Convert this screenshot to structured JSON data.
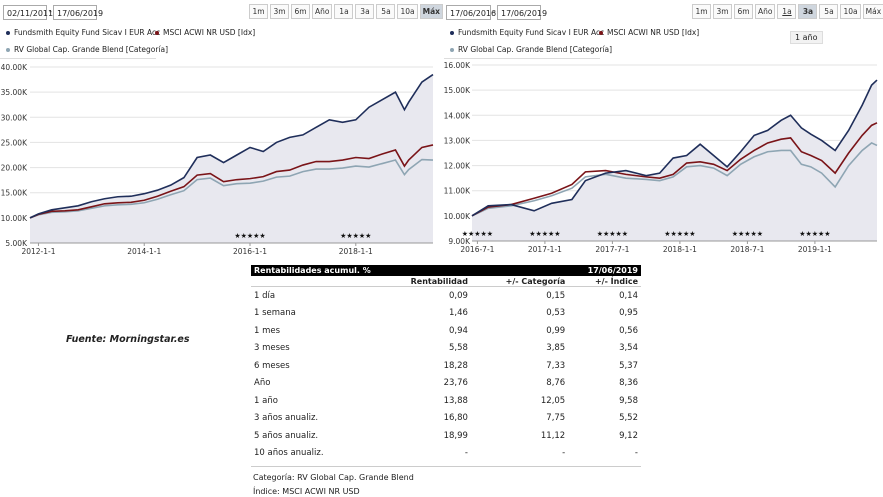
{
  "left_panel": {
    "date_from": "02/11/2011",
    "date_to": "17/06/2019",
    "date_dash": "-",
    "range_buttons": [
      "1m",
      "3m",
      "6m",
      "Año",
      "1a",
      "3a",
      "5a",
      "10a",
      "Máx"
    ],
    "active_range": "Máx"
  },
  "right_panel": {
    "date_from": "17/06/2016",
    "date_to": "17/06/2019",
    "date_dash": "-",
    "range_buttons": [
      "1m",
      "3m",
      "6m",
      "Año",
      "1a",
      "3a",
      "5a",
      "10a",
      "Máx"
    ],
    "active_range": "3a",
    "tooltip": "1 año"
  },
  "colors": {
    "fund": "#1f2e5a",
    "index": "#7a1418",
    "category": "#8ea5b3",
    "fill": "#e8e8ef"
  },
  "chart_data": [
    {
      "type": "line",
      "legend": [
        "Fundsmith Equity Fund Sicav I EUR Acc",
        "MSCI ACWI NR USD [Idx]",
        "RV Global Cap. Grande Blend [Categoría]"
      ],
      "y_ticks": [
        "40.00K",
        "35.00K",
        "30.00K",
        "25.00K",
        "20.00K",
        "15.00K",
        "10.00K",
        "5.00K"
      ],
      "x_ticks": [
        "2012-1-1",
        "2014-1-1",
        "2016-1-1",
        "2018-1-1"
      ],
      "ylim": [
        5000,
        40000
      ],
      "xlim": [
        2011.84,
        2019.46
      ],
      "x_tick_values": [
        2012,
        2014,
        2016,
        2018
      ],
      "stars": [
        "★★★★★",
        "★★★★★"
      ],
      "star_x": [
        2016.0,
        2018.0
      ],
      "series": [
        {
          "name": "Fundsmith Equity Fund Sicav I EUR Acc",
          "x": [
            2011.84,
            2012.0,
            2012.25,
            2012.5,
            2012.75,
            2013.0,
            2013.25,
            2013.5,
            2013.75,
            2014.0,
            2014.25,
            2014.5,
            2014.75,
            2015.0,
            2015.25,
            2015.5,
            2015.75,
            2016.0,
            2016.25,
            2016.5,
            2016.75,
            2017.0,
            2017.25,
            2017.5,
            2017.75,
            2018.0,
            2018.25,
            2018.5,
            2018.75,
            2018.92,
            2019.0,
            2019.25,
            2019.46
          ],
          "values": [
            10000,
            10800,
            11600,
            12000,
            12400,
            13200,
            13800,
            14200,
            14300,
            14800,
            15500,
            16500,
            18000,
            22000,
            22500,
            21000,
            22500,
            24000,
            23200,
            25000,
            26000,
            26500,
            28000,
            29500,
            29000,
            29500,
            32000,
            33500,
            35000,
            31500,
            33000,
            37000,
            38500
          ]
        },
        {
          "name": "MSCI ACWI NR USD [Idx]",
          "x": [
            2011.84,
            2012.0,
            2012.25,
            2012.5,
            2012.75,
            2013.0,
            2013.25,
            2013.5,
            2013.75,
            2014.0,
            2014.25,
            2014.5,
            2014.75,
            2015.0,
            2015.25,
            2015.5,
            2015.75,
            2016.0,
            2016.25,
            2016.5,
            2016.75,
            2017.0,
            2017.25,
            2017.5,
            2017.75,
            2018.0,
            2018.25,
            2018.5,
            2018.75,
            2018.92,
            2019.0,
            2019.25,
            2019.46
          ],
          "values": [
            10000,
            10700,
            11300,
            11400,
            11600,
            12200,
            12800,
            13000,
            13100,
            13500,
            14300,
            15300,
            16200,
            18500,
            18800,
            17200,
            17600,
            17800,
            18200,
            19200,
            19500,
            20500,
            21200,
            21200,
            21500,
            22000,
            21800,
            22700,
            23500,
            20300,
            21500,
            24000,
            24500
          ]
        },
        {
          "name": "RV Global Cap. Grande Blend [Categoría]",
          "x": [
            2011.84,
            2012.0,
            2012.25,
            2012.5,
            2012.75,
            2013.0,
            2013.25,
            2013.5,
            2013.75,
            2014.0,
            2014.25,
            2014.5,
            2014.75,
            2015.0,
            2015.25,
            2015.5,
            2015.75,
            2016.0,
            2016.25,
            2016.5,
            2016.75,
            2017.0,
            2017.25,
            2017.5,
            2017.75,
            2018.0,
            2018.25,
            2018.5,
            2018.75,
            2018.92,
            2019.0,
            2019.25,
            2019.46
          ],
          "values": [
            10000,
            10600,
            11100,
            11200,
            11400,
            11900,
            12400,
            12600,
            12700,
            13000,
            13700,
            14600,
            15400,
            17600,
            17900,
            16400,
            16800,
            16900,
            17300,
            18100,
            18300,
            19200,
            19700,
            19700,
            19900,
            20300,
            20100,
            20800,
            21500,
            18600,
            19600,
            21600,
            21500
          ]
        }
      ]
    },
    {
      "type": "line",
      "legend": [
        "Fundsmith Equity Fund Sicav I EUR Acc",
        "MSCI ACWI NR USD [Idx]",
        "RV Global Cap. Grande Blend [Categoría]"
      ],
      "y_ticks": [
        "16.00K",
        "15.00K",
        "14.00K",
        "13.00K",
        "12.00K",
        "11.00K",
        "10.00K",
        "9.00K"
      ],
      "x_ticks": [
        "2016-7-1",
        "2017-1-1",
        "2017-7-1",
        "2018-1-1",
        "2018-7-1",
        "2019-1-1"
      ],
      "ylim": [
        9000,
        16000
      ],
      "xlim": [
        2016.46,
        2019.46
      ],
      "x_tick_values": [
        2016.5,
        2017.0,
        2017.5,
        2018.0,
        2018.5,
        2019.0
      ],
      "stars": [
        "★★★★★",
        "★★★★★",
        "★★★★★",
        "★★★★★",
        "★★★★★",
        "★★★★★"
      ],
      "star_x": [
        2016.5,
        2017.0,
        2017.5,
        2018.0,
        2018.5,
        2019.0
      ],
      "series": [
        {
          "name": "Fundsmith Equity Fund Sicav I EUR Acc",
          "x": [
            2016.46,
            2016.58,
            2016.75,
            2016.92,
            2017.05,
            2017.2,
            2017.3,
            2017.45,
            2017.6,
            2017.75,
            2017.85,
            2017.95,
            2018.05,
            2018.15,
            2018.25,
            2018.35,
            2018.45,
            2018.55,
            2018.65,
            2018.75,
            2018.82,
            2018.9,
            2018.97,
            2019.05,
            2019.15,
            2019.25,
            2019.35,
            2019.42,
            2019.46
          ],
          "values": [
            10000,
            10400,
            10450,
            10200,
            10500,
            10650,
            11400,
            11700,
            11800,
            11600,
            11700,
            12300,
            12400,
            12850,
            12400,
            11950,
            12550,
            13200,
            13400,
            13800,
            14000,
            13500,
            13250,
            13000,
            12600,
            13400,
            14400,
            15200,
            15400
          ]
        },
        {
          "name": "MSCI ACWI NR USD [Idx]",
          "x": [
            2016.46,
            2016.58,
            2016.75,
            2016.92,
            2017.05,
            2017.2,
            2017.3,
            2017.45,
            2017.6,
            2017.75,
            2017.85,
            2017.95,
            2018.05,
            2018.15,
            2018.25,
            2018.35,
            2018.45,
            2018.55,
            2018.65,
            2018.75,
            2018.82,
            2018.9,
            2018.97,
            2019.05,
            2019.15,
            2019.25,
            2019.35,
            2019.42,
            2019.46
          ],
          "values": [
            10000,
            10350,
            10450,
            10700,
            10900,
            11250,
            11750,
            11800,
            11650,
            11550,
            11500,
            11650,
            12100,
            12150,
            12050,
            11800,
            12250,
            12600,
            12900,
            13050,
            13100,
            12550,
            12400,
            12200,
            11700,
            12500,
            13200,
            13600,
            13700
          ]
        },
        {
          "name": "RV Global Cap. Grande Blend [Categoría]",
          "x": [
            2016.46,
            2016.58,
            2016.75,
            2016.92,
            2017.05,
            2017.2,
            2017.3,
            2017.45,
            2017.6,
            2017.75,
            2017.85,
            2017.95,
            2018.05,
            2018.15,
            2018.25,
            2018.35,
            2018.45,
            2018.55,
            2018.65,
            2018.75,
            2018.82,
            2018.9,
            2018.97,
            2019.05,
            2019.15,
            2019.25,
            2019.35,
            2019.42,
            2019.46
          ],
          "values": [
            10000,
            10300,
            10400,
            10600,
            10800,
            11100,
            11550,
            11650,
            11500,
            11450,
            11400,
            11550,
            11950,
            12000,
            11900,
            11600,
            12050,
            12350,
            12550,
            12600,
            12600,
            12050,
            11950,
            11700,
            11150,
            12000,
            12600,
            12900,
            12800
          ]
        }
      ]
    }
  ],
  "source_text": "Fuente: Morningstar.es",
  "returns_table": {
    "title": "Rentabilidades acumul. %",
    "date": "17/06/2019",
    "columns": [
      "",
      "Rentabilidad",
      "+/- Categoría",
      "+/- Índice"
    ],
    "rows": [
      [
        "1 día",
        "0,09",
        "0,15",
        "0,14"
      ],
      [
        "1 semana",
        "1,46",
        "0,53",
        "0,95"
      ],
      [
        "1 mes",
        "0,94",
        "0,99",
        "0,56"
      ],
      [
        "3 meses",
        "5,58",
        "3,85",
        "3,54"
      ],
      [
        "6 meses",
        "18,28",
        "7,33",
        "5,37"
      ],
      [
        "Año",
        "23,76",
        "8,76",
        "8,36"
      ],
      [
        "1 año",
        "13,88",
        "12,05",
        "9,58"
      ],
      [
        "3 años anualiz.",
        "16,80",
        "7,75",
        "5,52"
      ],
      [
        "5 años anualiz.",
        "18,99",
        "11,12",
        "9,12"
      ],
      [
        "10 años anualiz.",
        "-",
        "-",
        "-"
      ]
    ],
    "footnote_category": "Categoría: RV Global Cap. Grande Blend",
    "footnote_index": "Índice: MSCI ACWI NR USD"
  }
}
